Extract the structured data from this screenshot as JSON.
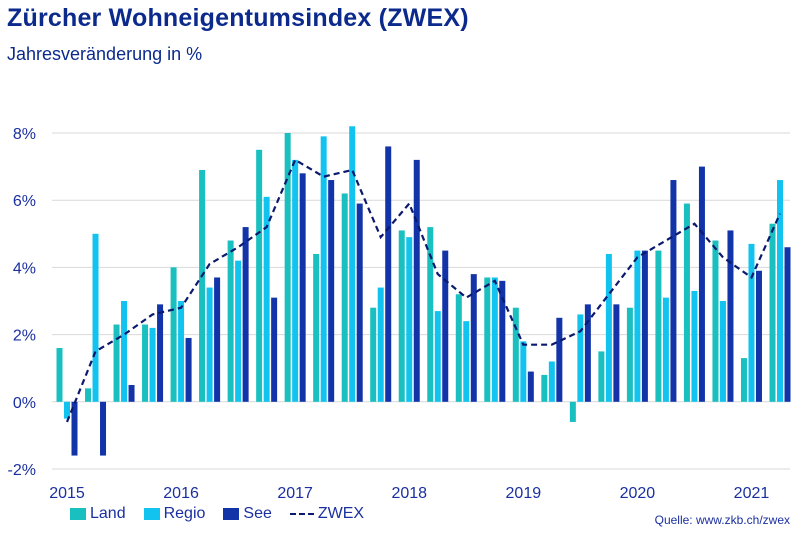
{
  "title": "Zürcher Wohneigentumsindex (ZWEX)",
  "subtitle": "Jahresveränderung in %",
  "source": "Quelle: www.zkb.ch/zwex",
  "colors": {
    "Land": "#1abfbf",
    "Regio": "#12c3ef",
    "See": "#1234a8",
    "ZWEX": "#0b1a6e",
    "grid": "#d9d9d9",
    "text": "#1a2fa0",
    "title": "#0b2a8c"
  },
  "chart_data": {
    "type": "bar",
    "x_label": "",
    "y_label": "",
    "ylim": [
      -2,
      8
    ],
    "y_ticks": [
      -2,
      0,
      2,
      4,
      6,
      8
    ],
    "y_tick_labels": [
      "-2%",
      "0%",
      "2%",
      "4%",
      "6%",
      "8%"
    ],
    "x_ticks": [
      2015,
      2016,
      2017,
      2018,
      2019,
      2020,
      2021
    ],
    "x_tick_labels": [
      "2015",
      "2016",
      "2017",
      "2018",
      "2019",
      "2020",
      "2021"
    ],
    "xlim": [
      2015.0,
      2021.25
    ],
    "grid": "horizontal",
    "legend": "bottom",
    "categories": [
      "2015 Q1",
      "2015 Q2",
      "2015 Q3",
      "2015 Q4",
      "2016 Q1",
      "2016 Q2",
      "2016 Q3",
      "2016 Q4",
      "2017 Q1",
      "2017 Q2",
      "2017 Q3",
      "2017 Q4",
      "2018 Q1",
      "2018 Q2",
      "2018 Q3",
      "2018 Q4",
      "2019 Q1",
      "2019 Q2",
      "2019 Q3",
      "2019 Q4",
      "2020 Q1",
      "2020 Q2",
      "2020 Q3",
      "2020 Q4",
      "2021 Q1",
      "2021 Q2"
    ],
    "series": [
      {
        "name": "Land",
        "type": "bar",
        "values": [
          1.6,
          0.4,
          2.3,
          2.3,
          4.0,
          6.9,
          4.8,
          7.5,
          8.0,
          4.4,
          6.2,
          2.8,
          5.1,
          5.2,
          3.2,
          3.7,
          2.8,
          0.8,
          -0.6,
          1.5,
          2.8,
          4.5,
          5.9,
          4.8,
          1.3,
          5.3
        ]
      },
      {
        "name": "Regio",
        "type": "bar",
        "values": [
          -0.5,
          5.0,
          3.0,
          2.2,
          3.0,
          3.4,
          4.2,
          6.1,
          7.2,
          7.9,
          8.2,
          3.4,
          4.9,
          2.7,
          2.4,
          3.7,
          1.8,
          1.2,
          2.6,
          4.4,
          4.5,
          3.1,
          3.3,
          3.0,
          4.7,
          6.6
        ]
      },
      {
        "name": "See",
        "type": "bar",
        "values": [
          -1.6,
          -1.6,
          0.5,
          2.9,
          1.9,
          3.7,
          5.2,
          3.1,
          6.8,
          6.6,
          5.9,
          7.6,
          7.2,
          4.5,
          3.8,
          3.6,
          0.9,
          2.5,
          2.9,
          2.9,
          4.5,
          6.6,
          7.0,
          5.1,
          3.9,
          4.6
        ]
      },
      {
        "name": "ZWEX",
        "type": "line",
        "values": [
          -0.6,
          1.5,
          2.0,
          2.6,
          2.8,
          4.1,
          4.6,
          5.2,
          7.2,
          6.7,
          6.9,
          4.9,
          5.9,
          3.8,
          3.1,
          3.6,
          1.7,
          1.7,
          2.1,
          3.2,
          4.3,
          4.8,
          5.3,
          4.3,
          3.7,
          5.6
        ]
      }
    ]
  }
}
